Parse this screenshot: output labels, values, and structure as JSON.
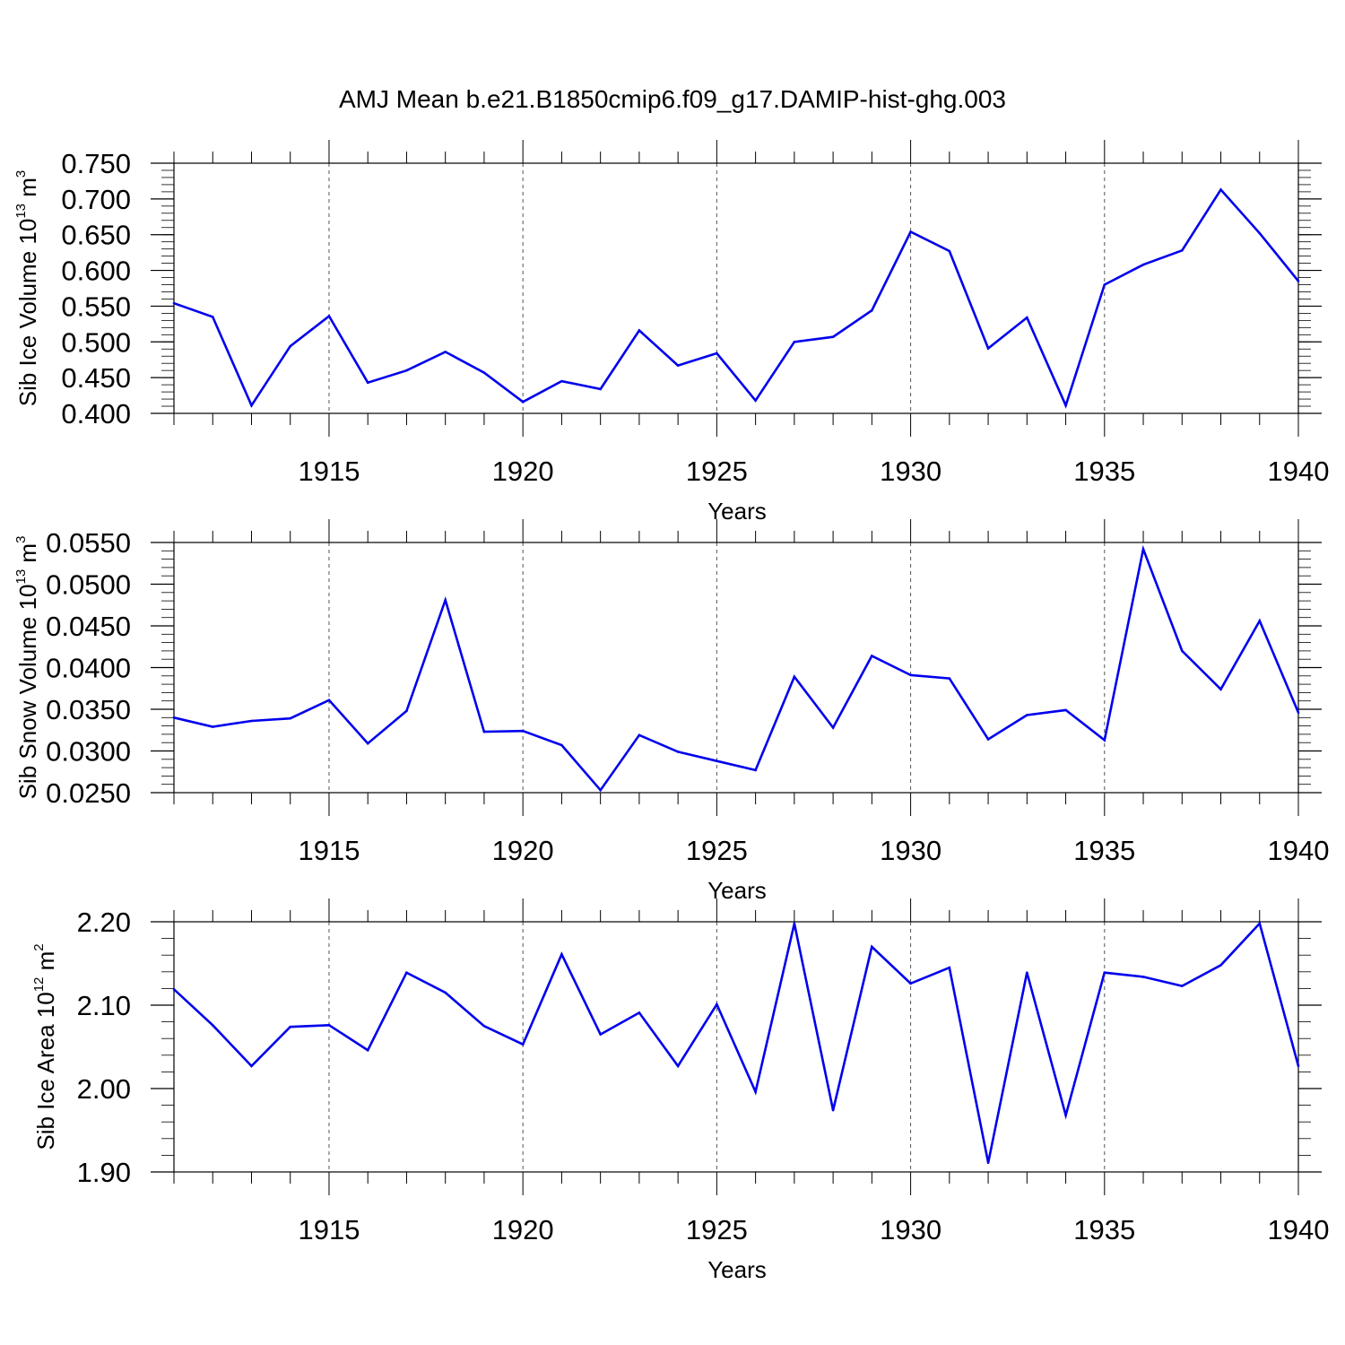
{
  "chart_data": [
    {
      "type": "line",
      "id": "ice-volume",
      "title": "AMJ Mean b.e21.B1850cmip6.f09_g17.DAMIP-hist-ghg.003",
      "ylabel": {
        "main": "Sib Ice Volume 10",
        "sup": "13",
        "unit": " m",
        "unit_sup": "3"
      },
      "xlabel": "Years",
      "xlim": [
        1911,
        1940
      ],
      "ylim": [
        0.4,
        0.75
      ],
      "y_ticks": [
        "0.400",
        "0.450",
        "0.500",
        "0.550",
        "0.600",
        "0.650",
        "0.700",
        "0.750"
      ],
      "y_minor_step": 0.01,
      "x_ticks": [
        "1915",
        "1920",
        "1925",
        "1930",
        "1935",
        "1940"
      ],
      "grid_x": [
        1915,
        1920,
        1925,
        1930,
        1935
      ],
      "line_color": "#0000ee",
      "x": [
        1911,
        1912,
        1913,
        1914,
        1915,
        1916,
        1917,
        1918,
        1919,
        1920,
        1921,
        1922,
        1923,
        1924,
        1925,
        1926,
        1927,
        1928,
        1929,
        1930,
        1931,
        1932,
        1933,
        1934,
        1935,
        1936,
        1937,
        1938,
        1939,
        1940
      ],
      "values": [
        0.554,
        0.535,
        0.411,
        0.494,
        0.536,
        0.443,
        0.46,
        0.486,
        0.457,
        0.416,
        0.445,
        0.434,
        0.516,
        0.467,
        0.484,
        0.418,
        0.5,
        0.507,
        0.544,
        0.654,
        0.627,
        0.491,
        0.534,
        0.411,
        0.58,
        0.608,
        0.628,
        0.713,
        0.652,
        0.585
      ]
    },
    {
      "type": "line",
      "id": "snow-volume",
      "ylabel": {
        "main": "Sib Snow Volume 10",
        "sup": "13",
        "unit": " m",
        "unit_sup": "3"
      },
      "xlabel": "Years",
      "xlim": [
        1911,
        1940
      ],
      "ylim": [
        0.025,
        0.055
      ],
      "y_ticks": [
        "0.0250",
        "0.0300",
        "0.0350",
        "0.0400",
        "0.0450",
        "0.0500",
        "0.0550"
      ],
      "y_minor_step": 0.001,
      "x_ticks": [
        "1915",
        "1920",
        "1925",
        "1930",
        "1935",
        "1940"
      ],
      "grid_x": [
        1915,
        1920,
        1925,
        1930,
        1935
      ],
      "line_color": "#0000ee",
      "x": [
        1911,
        1912,
        1913,
        1914,
        1915,
        1916,
        1917,
        1918,
        1919,
        1920,
        1921,
        1922,
        1923,
        1924,
        1925,
        1926,
        1927,
        1928,
        1929,
        1930,
        1931,
        1932,
        1933,
        1934,
        1935,
        1936,
        1937,
        1938,
        1939,
        1940
      ],
      "values": [
        0.034,
        0.0329,
        0.0336,
        0.0339,
        0.0361,
        0.0309,
        0.0348,
        0.0481,
        0.0323,
        0.0324,
        0.0307,
        0.0253,
        0.0319,
        0.0299,
        0.0288,
        0.0277,
        0.0389,
        0.0328,
        0.0414,
        0.0391,
        0.0387,
        0.0314,
        0.0343,
        0.0349,
        0.0313,
        0.0542,
        0.042,
        0.0374,
        0.0456,
        0.0346
      ]
    },
    {
      "type": "line",
      "id": "ice-area",
      "ylabel": {
        "main": "Sib Ice Area 10",
        "sup": "12",
        "unit": " m",
        "unit_sup": "2"
      },
      "xlabel": "Years",
      "xlim": [
        1911,
        1940
      ],
      "ylim": [
        1.9,
        2.2
      ],
      "y_ticks": [
        "1.90",
        "2.00",
        "2.10",
        "2.20"
      ],
      "y_minor_step": 0.02,
      "x_ticks": [
        "1915",
        "1920",
        "1925",
        "1930",
        "1935",
        "1940"
      ],
      "grid_x": [
        1915,
        1920,
        1925,
        1930,
        1935
      ],
      "line_color": "#0000ee",
      "x": [
        1911,
        1912,
        1913,
        1914,
        1915,
        1916,
        1917,
        1918,
        1919,
        1920,
        1921,
        1922,
        1923,
        1924,
        1925,
        1926,
        1927,
        1928,
        1929,
        1930,
        1931,
        1932,
        1933,
        1934,
        1935,
        1936,
        1937,
        1938,
        1939,
        1940
      ],
      "values": [
        2.119,
        2.076,
        2.027,
        2.074,
        2.076,
        2.046,
        2.139,
        2.115,
        2.075,
        2.053,
        2.161,
        2.065,
        2.091,
        2.027,
        2.101,
        1.996,
        2.198,
        1.974,
        2.17,
        2.126,
        2.145,
        1.911,
        2.139,
        1.968,
        2.139,
        2.134,
        2.123,
        2.148,
        2.198,
        2.027
      ]
    }
  ]
}
